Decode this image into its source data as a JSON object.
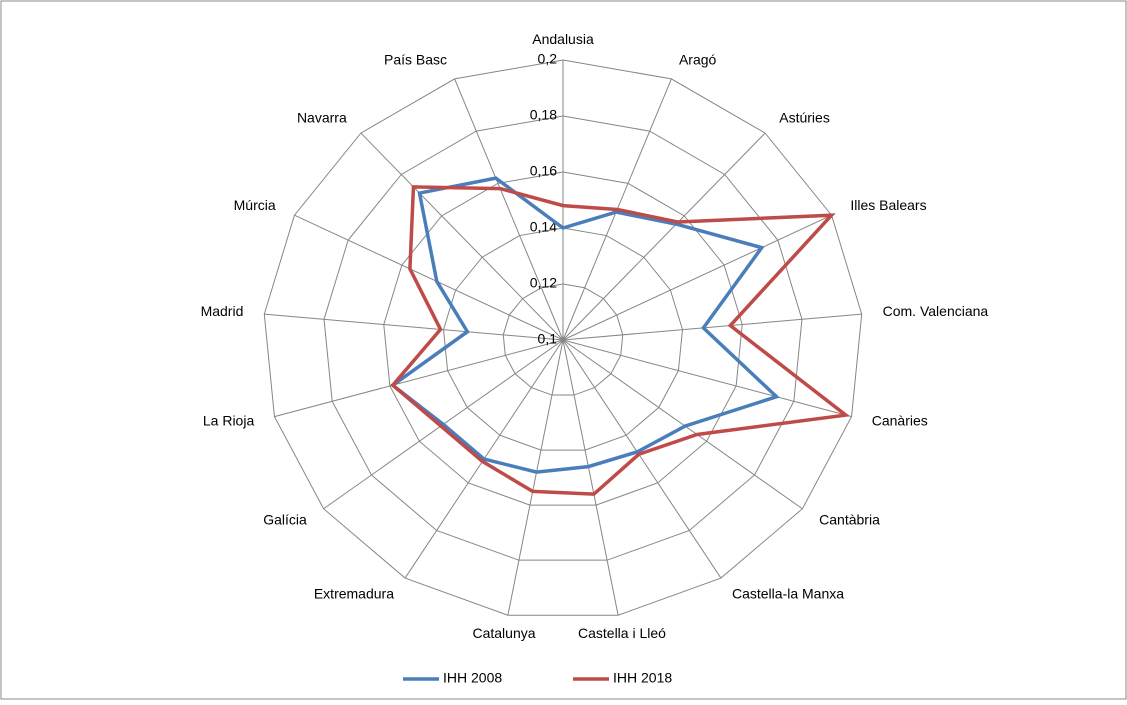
{
  "chart_data": {
    "type": "radar",
    "categories": [
      "Andalusia",
      "Aragó",
      "Astúries",
      "Illes Balears",
      "Com. Valenciana",
      "Canàries",
      "Cantàbria",
      "Castella-la Manxa",
      "Castella i Lleó",
      "Catalunya",
      "Extremadura",
      "Galícia",
      "La Rioja",
      "Madrid",
      "Múrcia",
      "Navarra",
      "País Basc"
    ],
    "series": [
      {
        "name": "IHH 2008",
        "color": "#4a7ebb",
        "values": [
          0.14,
          0.149,
          0.156,
          0.174,
          0.147,
          0.174,
          0.151,
          0.147,
          0.146,
          0.148,
          0.15,
          0.15,
          0.159,
          0.132,
          0.147,
          0.171,
          0.162
        ]
      },
      {
        "name": "IHH 2018",
        "color": "#be4b48",
        "values": [
          0.148,
          0.15,
          0.157,
          0.2,
          0.156,
          0.198,
          0.156,
          0.148,
          0.156,
          0.155,
          0.151,
          0.151,
          0.159,
          0.141,
          0.157,
          0.174,
          0.158
        ]
      }
    ],
    "ylim": [
      0.1,
      0.2
    ],
    "yticks": [
      {
        "value": 0.1,
        "label": "0,1"
      },
      {
        "value": 0.12,
        "label": "0,12"
      },
      {
        "value": 0.14,
        "label": "0,14"
      },
      {
        "value": 0.16,
        "label": "0,16"
      },
      {
        "value": 0.18,
        "label": "0,18"
      },
      {
        "value": 0.2,
        "label": "0,2"
      }
    ],
    "grid": true,
    "legend": "bottom"
  }
}
